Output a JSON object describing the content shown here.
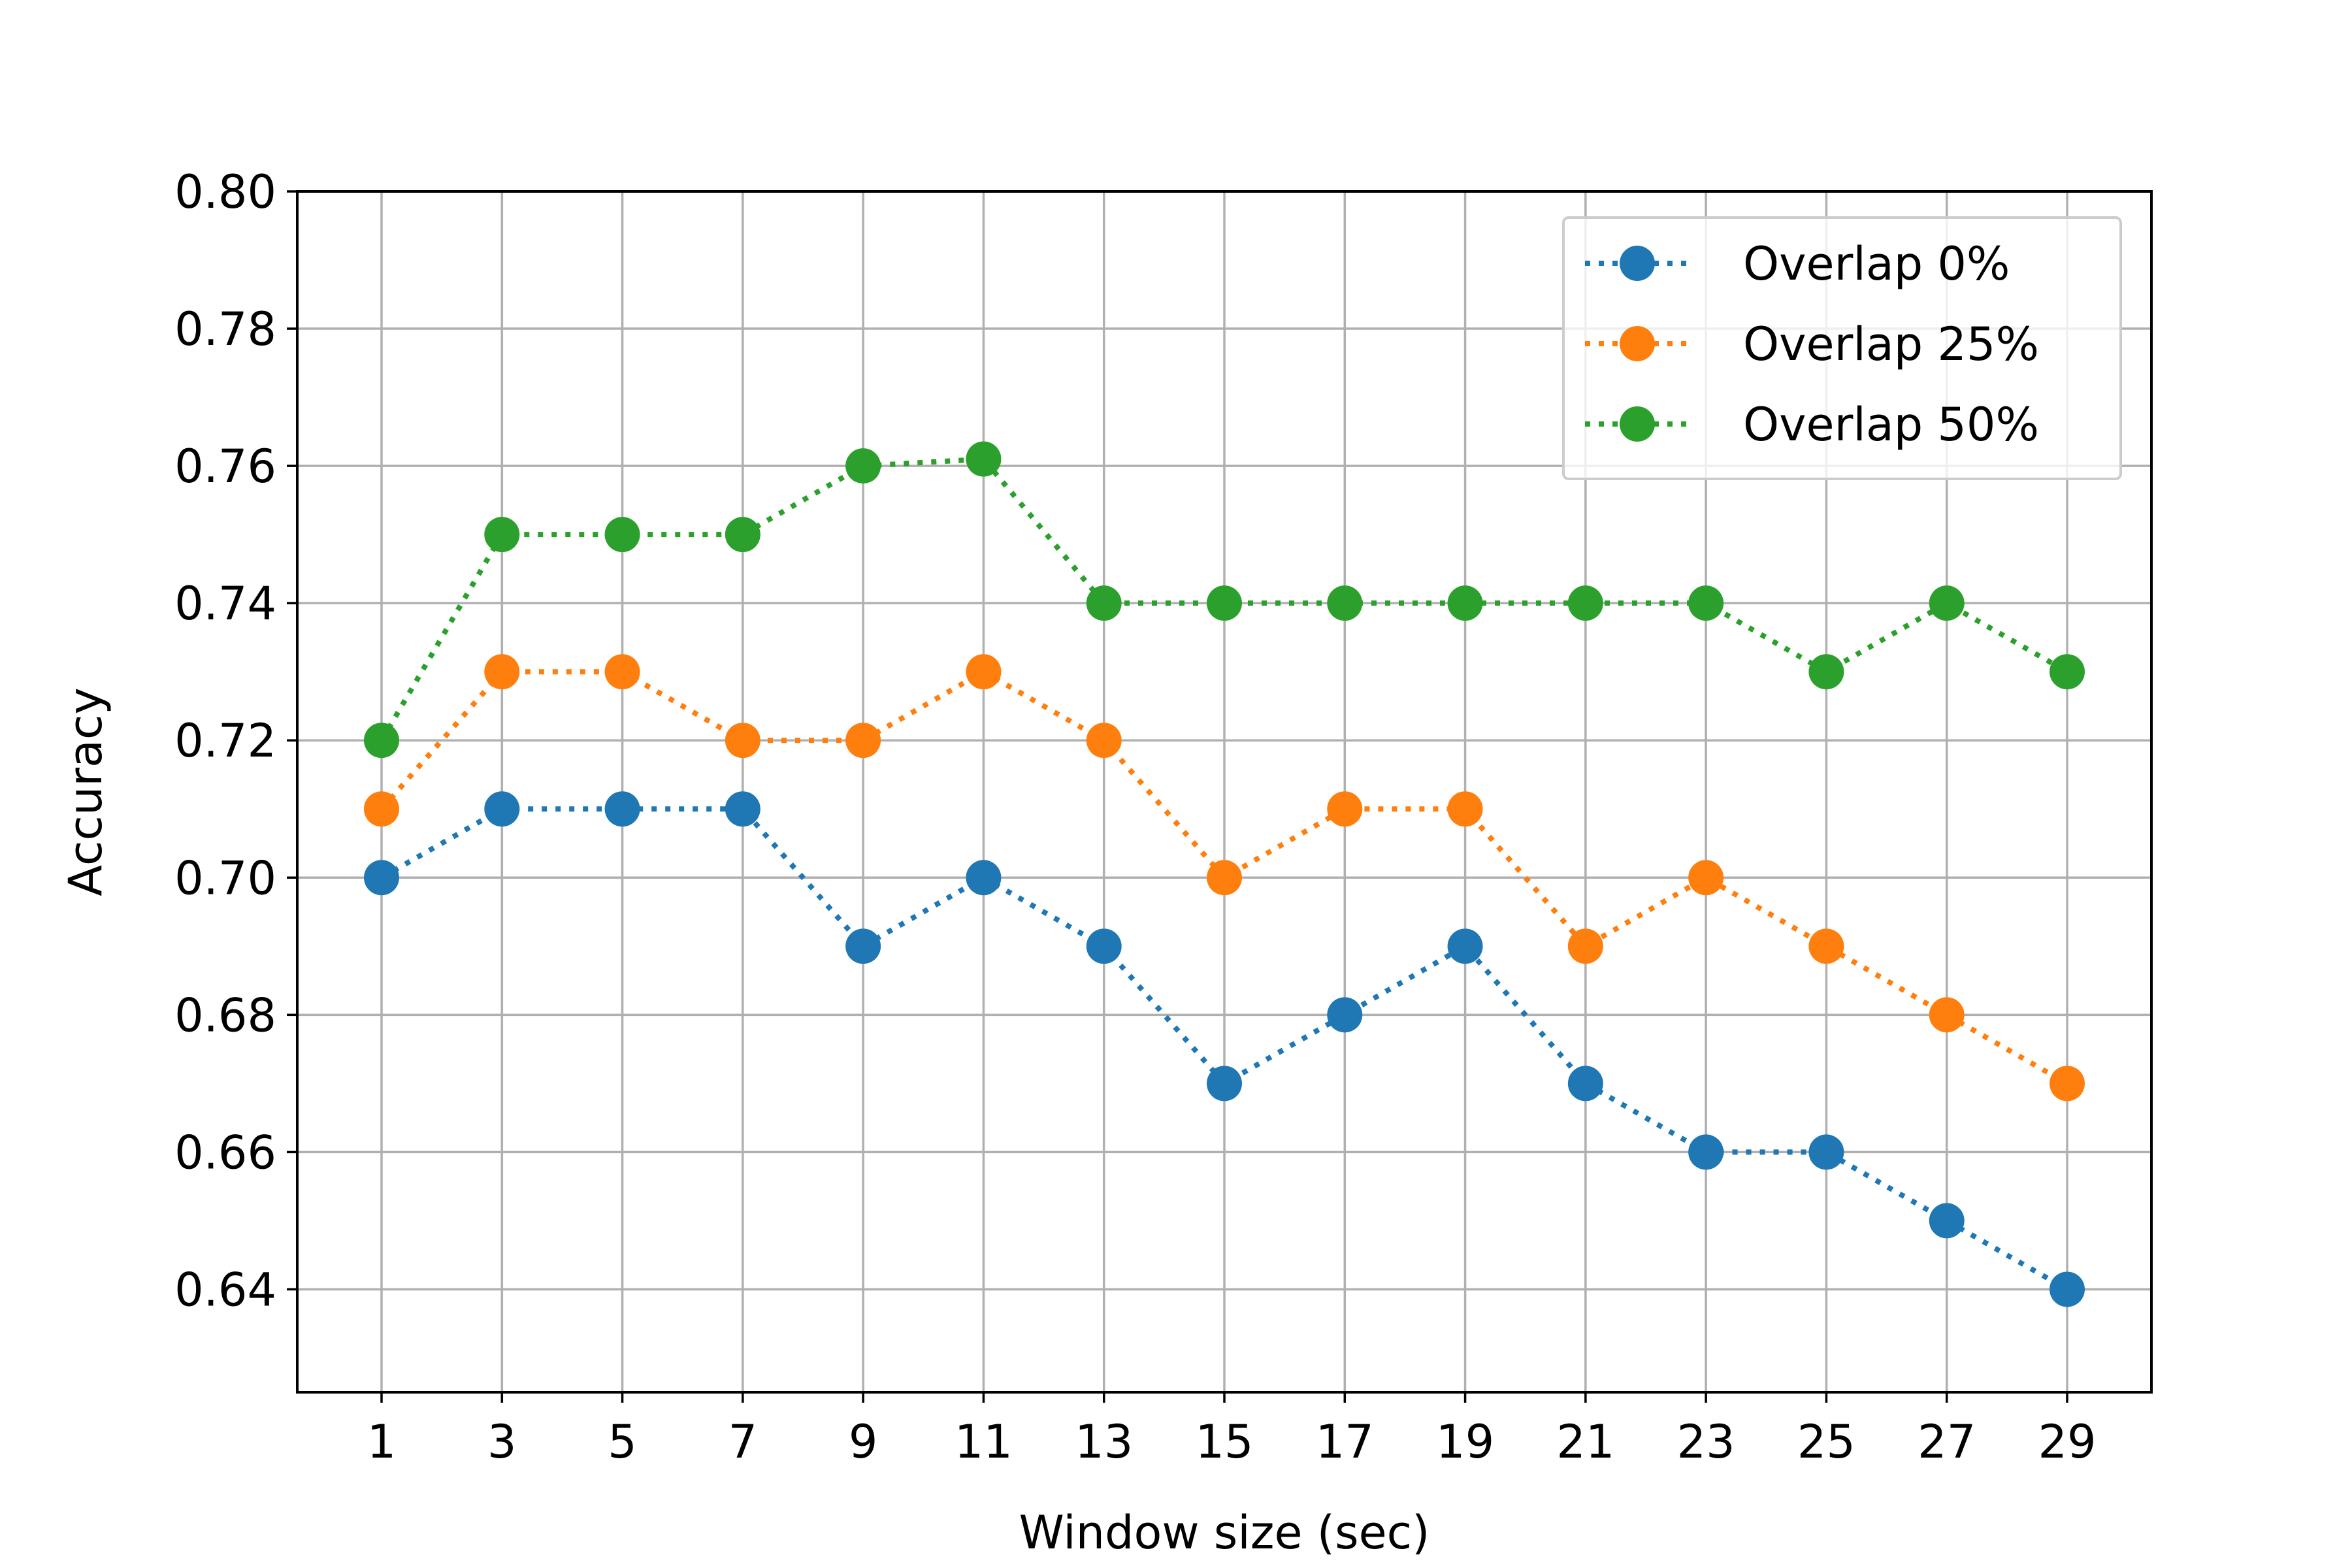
{
  "chart_data": {
    "type": "line",
    "title": "",
    "xlabel": "Window size (sec)",
    "ylabel": "Accuracy",
    "x": [
      1,
      3,
      5,
      7,
      9,
      11,
      13,
      15,
      17,
      19,
      21,
      23,
      25,
      27,
      29
    ],
    "x_tick_labels": [
      "1",
      "3",
      "5",
      "7",
      "9",
      "11",
      "13",
      "15",
      "17",
      "19",
      "21",
      "23",
      "25",
      "27",
      "29"
    ],
    "y_ticks": [
      0.64,
      0.66,
      0.68,
      0.7,
      0.72,
      0.74,
      0.76,
      0.78,
      0.8
    ],
    "y_tick_labels": [
      "0.64",
      "0.66",
      "0.68",
      "0.70",
      "0.72",
      "0.74",
      "0.76",
      "0.78",
      "0.80"
    ],
    "xlim": [
      -0.4,
      30.4
    ],
    "ylim": [
      0.625,
      0.8
    ],
    "grid": true,
    "legend_position": "top-right",
    "line_style": "dotted",
    "marker": "circle",
    "series": [
      {
        "name": "Overlap 0%",
        "color": "#1f77b4",
        "values": [
          0.7,
          0.71,
          0.71,
          0.71,
          0.69,
          0.7,
          0.69,
          0.67,
          0.68,
          0.69,
          0.67,
          0.66,
          0.66,
          0.65,
          0.64
        ]
      },
      {
        "name": "Overlap 25%",
        "color": "#ff7f0e",
        "values": [
          0.71,
          0.73,
          0.73,
          0.72,
          0.72,
          0.73,
          0.72,
          0.7,
          0.71,
          0.71,
          0.69,
          0.7,
          0.69,
          0.68,
          0.67
        ]
      },
      {
        "name": "Overlap 50%",
        "color": "#2ca02c",
        "values": [
          0.72,
          0.75,
          0.75,
          0.75,
          0.76,
          0.761,
          0.74,
          0.74,
          0.74,
          0.74,
          0.74,
          0.74,
          0.73,
          0.74,
          0.73
        ]
      }
    ]
  }
}
